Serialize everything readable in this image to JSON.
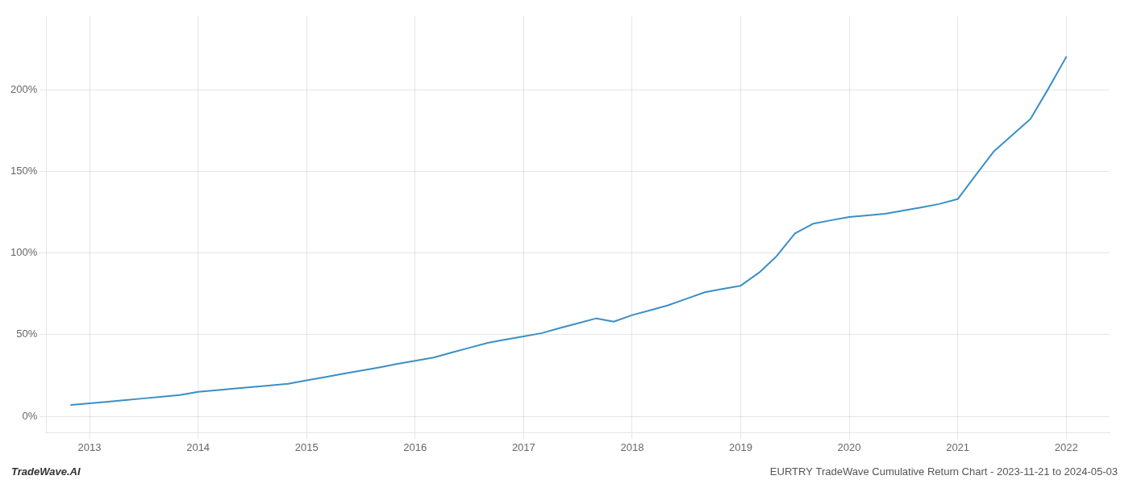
{
  "chart_data": {
    "type": "line",
    "annotations": [
      "TradeWave.AI",
      "EURTRY TradeWave Cumulative Return Chart - 2023-11-21 to 2024-05-03"
    ],
    "x": [
      2012.83,
      2013.0,
      2013.17,
      2013.33,
      2013.5,
      2013.67,
      2013.83,
      2014.0,
      2014.17,
      2014.33,
      2014.5,
      2014.67,
      2014.83,
      2015.0,
      2015.17,
      2015.33,
      2015.5,
      2015.67,
      2015.83,
      2016.0,
      2016.17,
      2016.33,
      2016.5,
      2016.67,
      2016.83,
      2017.0,
      2017.17,
      2017.33,
      2017.5,
      2017.67,
      2017.83,
      2018.0,
      2018.17,
      2018.33,
      2018.5,
      2018.67,
      2018.83,
      2019.0,
      2019.17,
      2019.33,
      2019.5,
      2019.67,
      2019.83,
      2020.0,
      2020.17,
      2020.33,
      2020.5,
      2020.67,
      2020.83,
      2021.0,
      2021.17,
      2021.33,
      2021.5,
      2021.67,
      2021.83,
      2022.0
    ],
    "values": [
      7,
      8,
      9,
      10,
      11,
      12,
      13,
      15,
      16,
      17,
      18,
      19,
      20,
      22,
      24,
      26,
      28,
      30,
      32,
      34,
      36,
      39,
      42,
      45,
      47,
      49,
      51,
      54,
      57,
      60,
      58,
      62,
      65,
      68,
      72,
      76,
      78,
      80,
      88,
      98,
      112,
      118,
      120,
      122,
      123,
      124,
      126,
      128,
      130,
      133,
      148,
      162,
      172,
      182,
      200,
      220
    ],
    "color": "#3a8fc7",
    "xlim": [
      2012.6,
      2022.4
    ],
    "xticks": [
      2013,
      2014,
      2015,
      2016,
      2017,
      2018,
      2019,
      2020,
      2021,
      2022
    ],
    "ylim": [
      -10,
      245
    ],
    "yticks": [
      {
        "value": 0,
        "label": "0%"
      },
      {
        "value": 50,
        "label": "50%"
      },
      {
        "value": 100,
        "label": "100%"
      },
      {
        "value": 150,
        "label": "150%"
      },
      {
        "value": 200,
        "label": "200%"
      }
    ],
    "grid": true
  }
}
